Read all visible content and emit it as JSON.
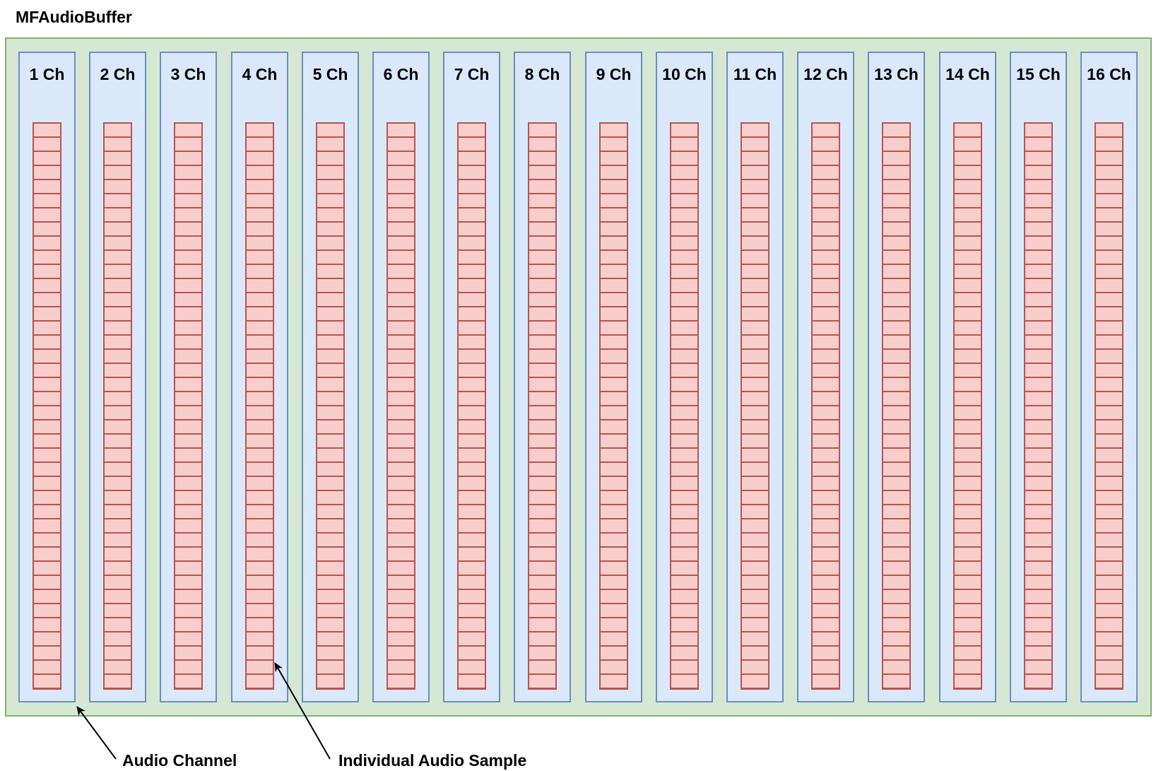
{
  "title": "MFAudioBuffer",
  "channels": [
    {
      "label": "1 Ch"
    },
    {
      "label": "2 Ch"
    },
    {
      "label": "3 Ch"
    },
    {
      "label": "4 Ch"
    },
    {
      "label": "5 Ch"
    },
    {
      "label": "6 Ch"
    },
    {
      "label": "7 Ch"
    },
    {
      "label": "8 Ch"
    },
    {
      "label": "9 Ch"
    },
    {
      "label": "10 Ch"
    },
    {
      "label": "11 Ch"
    },
    {
      "label": "12 Ch"
    },
    {
      "label": "13 Ch"
    },
    {
      "label": "14 Ch"
    },
    {
      "label": "15 Ch"
    },
    {
      "label": "16 Ch"
    }
  ],
  "annotations": {
    "audio_channel": "Audio Channel",
    "individual_sample": "Individual Audio Sample"
  },
  "colors": {
    "buffer_fill": "#d5e8d4",
    "buffer_stroke": "#82b366",
    "channel_fill": "#dae8fc",
    "channel_stroke": "#6c8ebf",
    "sample_fill": "#f8cecc",
    "sample_stroke": "#b85450"
  }
}
